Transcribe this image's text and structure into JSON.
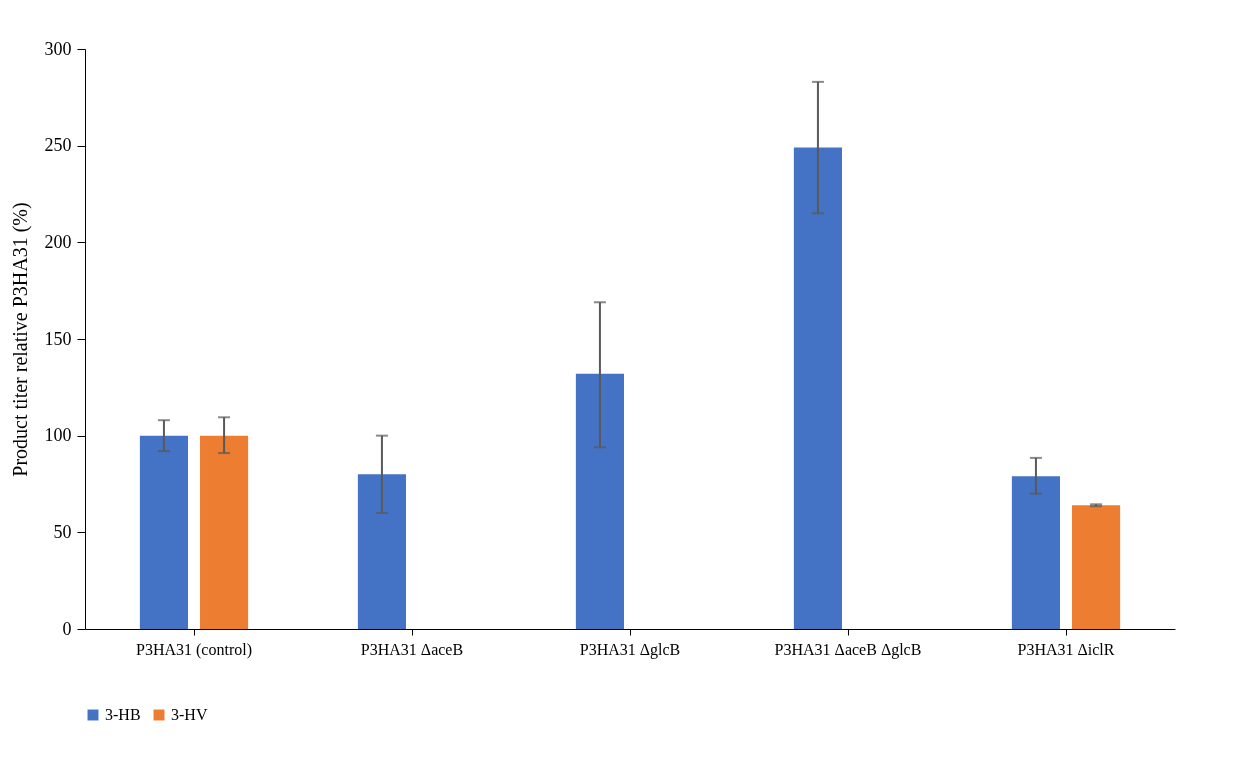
{
  "chart_data": {
    "type": "bar",
    "ylabel": "Product titer relative P3HA31 (%)",
    "categories": [
      "P3HA31 (control)",
      "P3HA31 ΔaceB",
      "P3HA31 ΔglcB",
      "P3HA31 ΔaceB ΔglcB",
      "P3HA31 ΔiclR"
    ],
    "series": [
      {
        "name": "3-HB",
        "color": "#4472c4",
        "values": [
          100,
          80,
          132,
          249,
          79
        ],
        "errors": [
          [
            92,
            108
          ],
          [
            60,
            100
          ],
          [
            94,
            169
          ],
          [
            215,
            283
          ],
          [
            70,
            88.5
          ]
        ]
      },
      {
        "name": "3-HV",
        "color": "#ed7d31",
        "values": [
          100,
          0,
          0,
          0,
          64
        ],
        "errors": [
          [
            91,
            109.5
          ],
          null,
          null,
          null,
          [
            63.5,
            64.5
          ]
        ]
      }
    ],
    "ylim": [
      0,
      300
    ],
    "yticks": [
      0,
      50,
      100,
      150,
      200,
      250,
      300
    ],
    "grid": false,
    "legend": "bottom"
  }
}
